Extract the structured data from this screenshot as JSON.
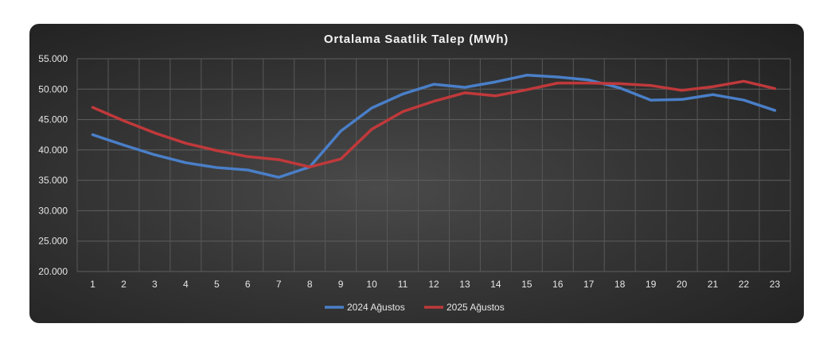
{
  "chart_data": {
    "type": "line",
    "title": "Ortalama Saatlik Talep (MWh)",
    "xlabel": "",
    "ylabel": "",
    "categories": [
      "1",
      "2",
      "3",
      "4",
      "5",
      "6",
      "7",
      "8",
      "9",
      "10",
      "11",
      "12",
      "13",
      "14",
      "15",
      "16",
      "17",
      "18",
      "19",
      "20",
      "21",
      "22",
      "23"
    ],
    "ylim": [
      20000,
      55000
    ],
    "yticks": [
      20000,
      25000,
      30000,
      35000,
      40000,
      45000,
      50000,
      55000
    ],
    "ytick_labels": [
      "20.000",
      "25.000",
      "30.000",
      "35.000",
      "40.000",
      "45.000",
      "50.000",
      "55.000"
    ],
    "grid": true,
    "legend_position": "bottom",
    "series": [
      {
        "name": "2024 Ağustos",
        "color": "#4a7fc8",
        "values": [
          42500,
          40800,
          39200,
          37900,
          37100,
          36700,
          35500,
          37200,
          43100,
          46900,
          49200,
          50800,
          50300,
          51200,
          52300,
          52000,
          51500,
          50200,
          48200,
          48300,
          49100,
          48200,
          46500
        ]
      },
      {
        "name": "2025 Ağustos",
        "color": "#c0393b",
        "values": [
          47000,
          44800,
          42800,
          41100,
          39900,
          38900,
          38400,
          37200,
          38500,
          43400,
          46300,
          48000,
          49400,
          48900,
          49900,
          51000,
          51000,
          50900,
          50600,
          49800,
          50400,
          51300,
          50100
        ]
      }
    ]
  }
}
